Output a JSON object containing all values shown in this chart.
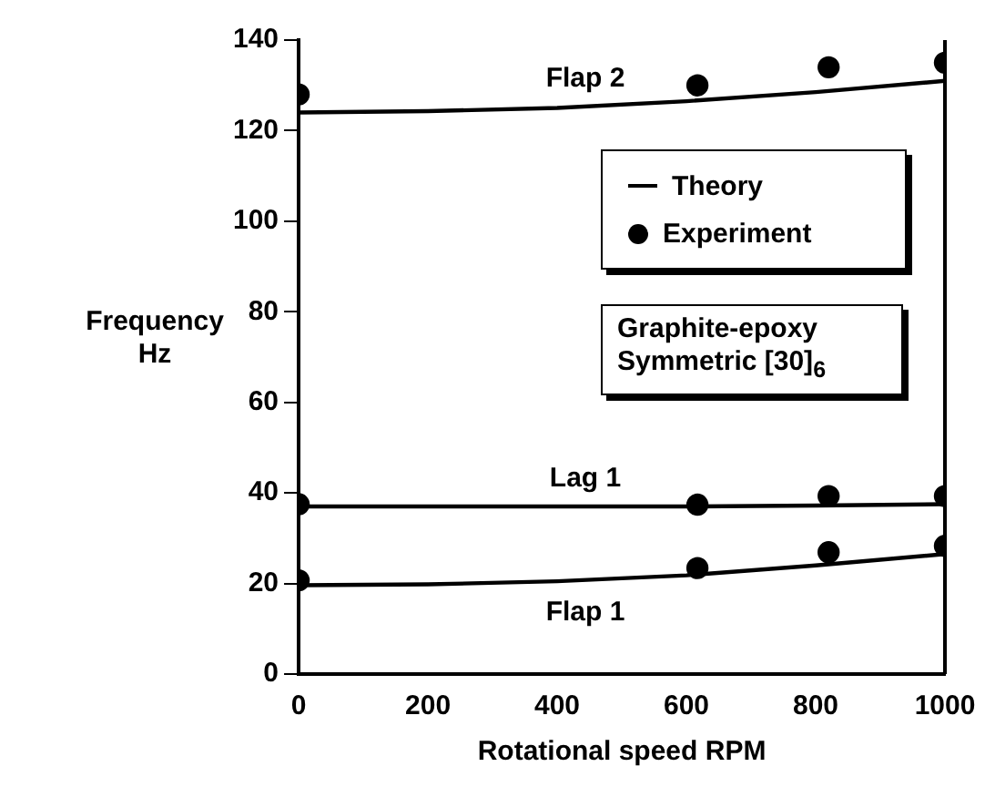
{
  "chart_data": {
    "type": "line",
    "xlabel": "Rotational speed RPM",
    "ylabel": "Frequency Hz",
    "xlim": [
      0,
      1000
    ],
    "xticks": [
      0,
      200,
      400,
      600,
      800,
      1000
    ],
    "ylim": [
      0,
      140
    ],
    "yticks": [
      0,
      20,
      40,
      60,
      80,
      100,
      120,
      140
    ],
    "grid": false,
    "legend": "top right",
    "line_style": "solid",
    "series": [
      {
        "name": "Theory",
        "marker": "none",
        "color": "#000000",
        "x": [
          0,
          200,
          400,
          600,
          800,
          1000
        ],
        "values": [
          124,
          124.3,
          125,
          126.5,
          128.5,
          131
        ]
      },
      {
        "marker": "none",
        "color": "#000000",
        "x": [
          0,
          200,
          400,
          600,
          800,
          1000
        ],
        "values": [
          37,
          37,
          37,
          37,
          37.2,
          37.5
        ]
      },
      {
        "marker": "none",
        "color": "#000000",
        "x": [
          0,
          200,
          400,
          600,
          800,
          1000
        ],
        "values": [
          19.6,
          19.8,
          20.5,
          21.8,
          24,
          26.5
        ]
      },
      {
        "name": "Experiment",
        "type": "scatter",
        "marker": "circle",
        "color": "#000000",
        "x": [
          0,
          617,
          820,
          1000
        ],
        "values": [
          128,
          130,
          134,
          135
        ]
      },
      {
        "type": "scatter",
        "marker": "circle",
        "color": "#000000",
        "x": [
          0,
          617,
          820,
          1000
        ],
        "values": [
          37.5,
          37.4,
          39.3,
          39.3
        ]
      },
      {
        "type": "scatter",
        "marker": "circle",
        "color": "#000000",
        "x": [
          0,
          617,
          820,
          1000
        ],
        "values": [
          20.7,
          23.4,
          26.9,
          28.3
        ]
      }
    ],
    "annotations": [
      "Flap 2",
      "Lag 1",
      "Flap 1",
      "Graphite-epoxy Symmetric [30]$_{6}$"
    ]
  }
}
